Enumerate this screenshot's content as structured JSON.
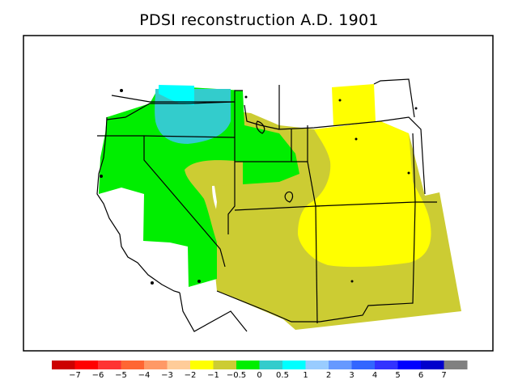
{
  "title": "PDSI reconstruction A.D. 1901",
  "palette": {
    "green": "#00ee00",
    "olive": "#cccc33",
    "yellow": "#ffff00",
    "teal": "#33cccc",
    "cyan": "#00ffff"
  },
  "legend": {
    "colors": [
      "#cc0000",
      "#ff0000",
      "#ff3333",
      "#ff6633",
      "#ff9966",
      "#ffcc99",
      "#ffff00",
      "#cccc33",
      "#00ee00",
      "#33cccc",
      "#00ffff",
      "#99ccff",
      "#6699ff",
      "#3366ff",
      "#3333ff",
      "#0000ff",
      "#0000cc",
      "#808080"
    ],
    "labels": [
      "−7",
      "−6",
      "−5",
      "−4",
      "−3",
      "−2",
      "−1",
      "−0.5",
      "0",
      "0.5",
      "1",
      "2",
      "3",
      "4",
      "5",
      "6",
      "7"
    ]
  }
}
